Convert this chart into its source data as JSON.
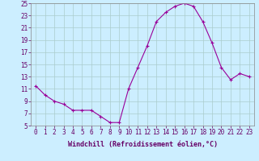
{
  "x": [
    0,
    1,
    2,
    3,
    4,
    5,
    6,
    7,
    8,
    9,
    10,
    11,
    12,
    13,
    14,
    15,
    16,
    17,
    18,
    19,
    20,
    21,
    22,
    23
  ],
  "y": [
    11.5,
    10.0,
    9.0,
    8.5,
    7.5,
    7.5,
    7.5,
    6.5,
    5.5,
    5.5,
    11.0,
    14.5,
    18.0,
    22.0,
    23.5,
    24.5,
    25.0,
    24.5,
    22.0,
    18.5,
    14.5,
    12.5,
    13.5,
    13.0
  ],
  "line_color": "#990099",
  "marker": "+",
  "marker_size": 3,
  "linewidth": 0.8,
  "markeredgewidth": 0.8,
  "xlabel": "Windchill (Refroidissement éolien,°C)",
  "xlabel_fontsize": 6,
  "ylim": [
    5,
    25
  ],
  "xlim": [
    -0.5,
    23.5
  ],
  "yticks": [
    5,
    7,
    9,
    11,
    13,
    15,
    17,
    19,
    21,
    23,
    25
  ],
  "xticks": [
    0,
    1,
    2,
    3,
    4,
    5,
    6,
    7,
    8,
    9,
    10,
    11,
    12,
    13,
    14,
    15,
    16,
    17,
    18,
    19,
    20,
    21,
    22,
    23
  ],
  "tick_fontsize": 5.5,
  "bg_color": "#cceeff",
  "grid_color": "#aacccc",
  "grid_alpha": 1.0,
  "fig_bg": "#cceeff",
  "spine_color": "#888888",
  "tick_color": "#660066",
  "label_color": "#660066"
}
